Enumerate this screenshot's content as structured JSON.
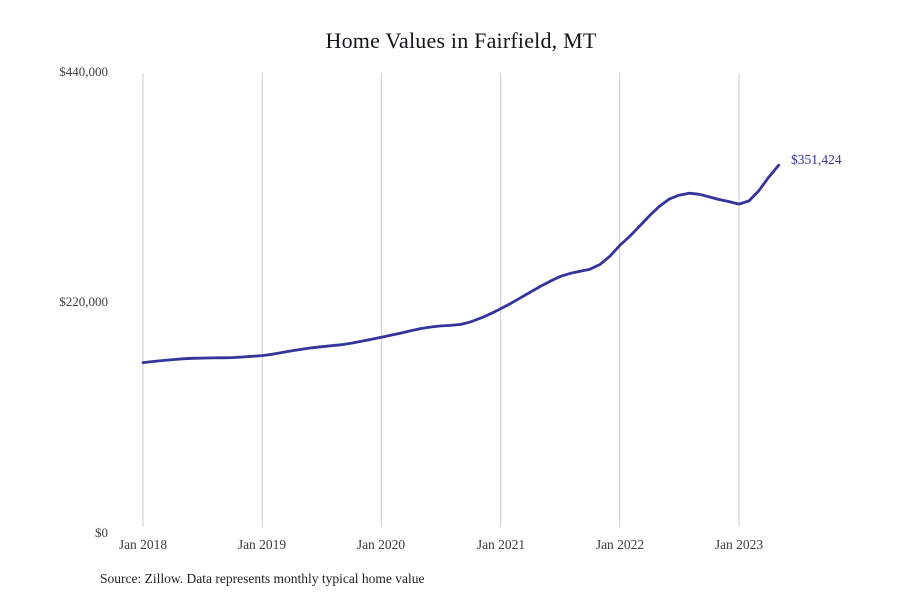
{
  "title": "Home Values in Fairfield, MT",
  "source_note": "Source: Zillow. Data represents monthly typical home value",
  "colors": {
    "line": "#34349b",
    "grid": "#cccccc",
    "axis_text": "#3c3c3c",
    "end_label_text": "#34349b",
    "background": "#ffffff"
  },
  "chart_data": {
    "type": "line",
    "title": "Home Values in Fairfield, MT",
    "frequency": "monthly",
    "x_start": "Jan 2018",
    "x_end": "May 2023",
    "x_tick_labels": [
      "Jan 2018",
      "Jan 2019",
      "Jan 2020",
      "Jan 2021",
      "Jan 2022",
      "Jan 2023"
    ],
    "x_tick_indices": [
      0,
      12,
      24,
      36,
      48,
      60
    ],
    "y_tick_labels": [
      "$0",
      "$220,000",
      "$440,000"
    ],
    "ylim": [
      0,
      440000
    ],
    "grid": "vertical-only",
    "legend": "none",
    "end_label": "$351,424",
    "latest_value": 351424,
    "values": [
      161800,
      162800,
      163800,
      164700,
      165400,
      165900,
      166100,
      166300,
      166400,
      166600,
      167200,
      167800,
      168500,
      169800,
      171500,
      173200,
      174700,
      176000,
      177100,
      178000,
      179000,
      180500,
      182300,
      184200,
      186200,
      188200,
      190200,
      192500,
      194500,
      196000,
      197000,
      197500,
      198500,
      201000,
      204500,
      208800,
      213500,
      218500,
      224000,
      229500,
      235000,
      240000,
      244500,
      247500,
      249500,
      251500,
      256000,
      264000,
      274400,
      283000,
      293000,
      303000,
      312000,
      319000,
      322700,
      324500,
      323500,
      321000,
      318500,
      316500,
      314100,
      317000,
      327000,
      340000,
      351424
    ]
  }
}
